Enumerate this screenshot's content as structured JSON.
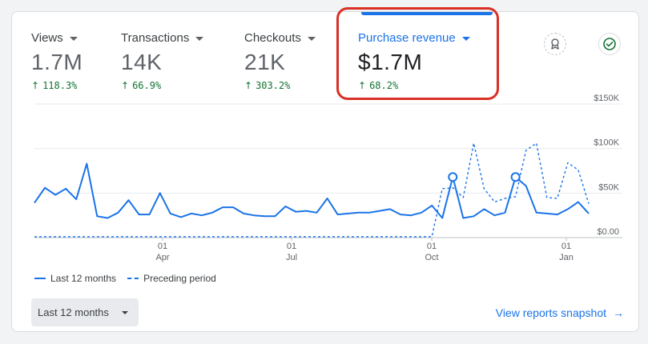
{
  "metrics": [
    {
      "label": "Views",
      "value": "1.7M",
      "change": "118.3%"
    },
    {
      "label": "Transactions",
      "value": "14K",
      "change": "66.9%"
    },
    {
      "label": "Checkouts",
      "value": "21K",
      "change": "303.2%"
    },
    {
      "label": "Purchase revenue",
      "value": "$1.7M",
      "change": "68.2%"
    }
  ],
  "icons": {
    "insight": "insights-badge-icon",
    "check": "checkmark-circle-icon",
    "up_arrow": "↑"
  },
  "colors": {
    "accent": "#1a73e8",
    "positive": "#137333",
    "highlight": "#d93025"
  },
  "legend": {
    "current": "Last 12 months",
    "previous": "Preceding period"
  },
  "footer": {
    "date_range": "Last 12 months",
    "link": "View reports snapshot",
    "link_arrow": "→"
  },
  "chart_data": {
    "type": "line",
    "y_ticks": [
      "$150K",
      "$100K",
      "$50K",
      "$0.00"
    ],
    "ylim": [
      0,
      150000
    ],
    "x_ticks": [
      {
        "day": "01",
        "month": "Apr"
      },
      {
        "day": "01",
        "month": "Jul"
      },
      {
        "day": "01",
        "month": "Oct"
      },
      {
        "day": "01",
        "month": "Jan"
      }
    ],
    "grid": true,
    "legend_position": "bottom-left",
    "series": [
      {
        "name": "Last 12 months",
        "style": "solid",
        "values": [
          39000,
          56000,
          48000,
          55000,
          43000,
          83000,
          24000,
          22000,
          28000,
          42000,
          26000,
          26000,
          50000,
          27000,
          23000,
          27000,
          25000,
          28000,
          34000,
          34000,
          27000,
          25000,
          24000,
          24000,
          35000,
          29000,
          30000,
          28000,
          44000,
          26000,
          27000,
          28000,
          28000,
          30000,
          32000,
          26000,
          25000,
          28000,
          36000,
          22000,
          68000,
          22000,
          24000,
          32000,
          25000,
          28000,
          68000,
          58000,
          28000,
          27000,
          26000,
          32000,
          40000,
          27000
        ],
        "markers": [
          40,
          46
        ]
      },
      {
        "name": "Preceding period",
        "style": "dashed",
        "values": [
          1000,
          1000,
          1000,
          1000,
          1000,
          1000,
          1000,
          1000,
          1000,
          1000,
          1000,
          1000,
          1000,
          1000,
          1000,
          1000,
          1000,
          1000,
          1000,
          1000,
          1000,
          1000,
          1000,
          1000,
          1000,
          1000,
          1000,
          1000,
          1000,
          1000,
          1000,
          1000,
          1000,
          1000,
          1000,
          1000,
          1000,
          1000,
          1000,
          55000,
          56000,
          45000,
          106000,
          55000,
          40000,
          44000,
          46000,
          98000,
          106000,
          45000,
          44000,
          84000,
          76000,
          38000
        ]
      }
    ]
  }
}
